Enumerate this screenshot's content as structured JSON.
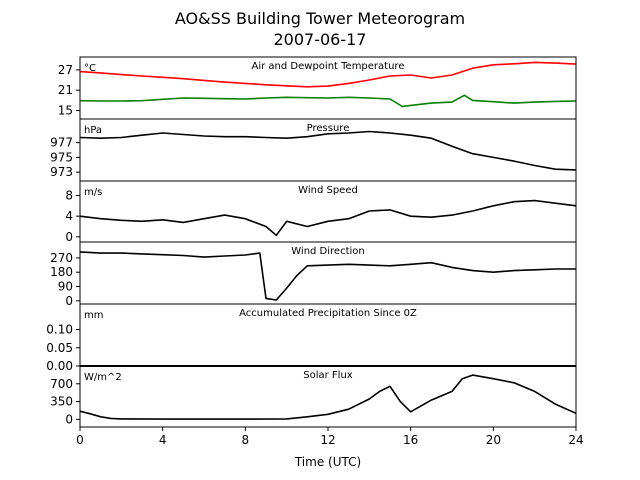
{
  "figure": {
    "title_line1": "AO&SS Building Tower Meteorogram",
    "title_line2": "2007-06-17",
    "xlabel": "Time (UTC)"
  },
  "chart_data": {
    "type": "line",
    "title": "AO&SS Building Tower Meteorogram 2007-06-17",
    "xlabel": "Time (UTC)",
    "xlim": [
      0,
      24
    ],
    "xticks": [
      0,
      4,
      8,
      12,
      16,
      20,
      24
    ],
    "grid": false,
    "panels": [
      {
        "id": "temperature",
        "title": "Air and Dewpoint Temperature",
        "unit": "°C",
        "ylim": [
          12.5,
          30.8
        ],
        "yticks": [
          15,
          21,
          27
        ],
        "series": [
          {
            "color": "#ff0000",
            "x": [
              0,
              1,
              2,
              3,
              4,
              5,
              6,
              7,
              8,
              9,
              10,
              11,
              12,
              13,
              14,
              15,
              16,
              17,
              18,
              19,
              20,
              21,
              22,
              23,
              24
            ],
            "y": [
              26.5,
              26.1,
              25.6,
              25.2,
              24.8,
              24.4,
              23.9,
              23.4,
              23.0,
              22.6,
              22.3,
              22.0,
              22.2,
              23.0,
              24.0,
              25.2,
              25.5,
              24.6,
              25.5,
              27.5,
              28.5,
              28.8,
              29.2,
              29.0,
              28.7
            ]
          },
          {
            "color": "#008000",
            "x": [
              0,
              1,
              2,
              3,
              4,
              5,
              6,
              7,
              8,
              9,
              10,
              11,
              12,
              13,
              14,
              15,
              15.6,
              16,
              17,
              18,
              18.6,
              19,
              20,
              21,
              22,
              23,
              24
            ],
            "y": [
              17.9,
              17.8,
              17.8,
              17.9,
              18.3,
              18.7,
              18.6,
              18.5,
              18.4,
              18.7,
              18.9,
              18.8,
              18.7,
              18.9,
              18.7,
              18.4,
              16.2,
              16.5,
              17.2,
              17.5,
              19.5,
              18.0,
              17.6,
              17.2,
              17.5,
              17.7,
              17.8
            ]
          }
        ]
      },
      {
        "id": "pressure",
        "title": "Pressure",
        "unit": "hPa",
        "ylim": [
          971.8,
          980.2
        ],
        "yticks": [
          973,
          975,
          977
        ],
        "series": [
          {
            "color": "#000000",
            "x": [
              0,
              1,
              2,
              3,
              4,
              5,
              6,
              7,
              8,
              9,
              10,
              11,
              12,
              13,
              14,
              15,
              16,
              17,
              18,
              19,
              20,
              21,
              22,
              23,
              24
            ],
            "y": [
              977.7,
              977.6,
              977.7,
              978.0,
              978.3,
              978.1,
              977.9,
              977.8,
              977.8,
              977.7,
              977.6,
              977.8,
              978.2,
              978.3,
              978.5,
              978.3,
              978.0,
              977.6,
              976.5,
              975.5,
              975.0,
              974.5,
              973.9,
              973.4,
              973.3
            ]
          }
        ]
      },
      {
        "id": "wind_speed",
        "title": "Wind Speed",
        "unit": "m/s",
        "ylim": [
          -1.0,
          10.8
        ],
        "yticks": [
          0,
          4,
          8
        ],
        "series": [
          {
            "color": "#000000",
            "x": [
              0,
              1,
              2,
              3,
              4,
              5,
              6,
              7,
              8,
              9,
              9.5,
              10,
              11,
              12,
              13,
              14,
              15,
              16,
              17,
              18,
              19,
              20,
              21,
              22,
              23,
              24
            ],
            "y": [
              4.0,
              3.5,
              3.2,
              3.0,
              3.3,
              2.8,
              3.5,
              4.2,
              3.5,
              2.0,
              0.3,
              3.0,
              2.0,
              3.0,
              3.5,
              5.0,
              5.2,
              4.0,
              3.8,
              4.2,
              5.0,
              6.0,
              6.8,
              7.0,
              6.5,
              6.0
            ]
          }
        ]
      },
      {
        "id": "wind_direction",
        "title": "Wind Direction",
        "unit": "",
        "ylim": [
          -20,
          370
        ],
        "yticks": [
          0,
          90,
          180,
          270
        ],
        "series": [
          {
            "color": "#000000",
            "x": [
              0,
              1,
              2,
              3,
              4,
              5,
              6,
              7,
              8,
              8.7,
              9,
              9.5,
              10,
              10.5,
              11,
              12,
              13,
              14,
              15,
              16,
              17,
              18,
              19,
              20,
              21,
              22,
              23,
              24
            ],
            "y": [
              308,
              300,
              300,
              295,
              290,
              285,
              275,
              282,
              288,
              300,
              15,
              5,
              80,
              160,
              220,
              225,
              230,
              225,
              220,
              230,
              240,
              210,
              190,
              180,
              190,
              195,
              200,
              200
            ]
          }
        ]
      },
      {
        "id": "precipitation",
        "title": "Accumulated Precipitation Since 0Z",
        "unit": "mm",
        "ylim": [
          0,
          0.17
        ],
        "yticks": [
          0.0,
          0.05,
          0.1
        ],
        "series": [
          {
            "color": "#000000",
            "x": [
              0,
              24
            ],
            "y": [
              0,
              0
            ]
          }
        ]
      },
      {
        "id": "solar_flux",
        "title": "Solar Flux",
        "unit": "W/m^2",
        "ylim": [
          -150,
          1050
        ],
        "yticks": [
          0,
          350,
          700
        ],
        "series": [
          {
            "color": "#000000",
            "x": [
              0,
              0.5,
              1,
              1.5,
              2,
              4,
              6,
              8,
              10,
              11,
              12,
              13,
              14,
              14.5,
              15,
              15.5,
              16,
              17,
              18,
              18.5,
              19,
              20,
              21,
              22,
              23,
              24
            ],
            "y": [
              160,
              110,
              50,
              20,
              10,
              5,
              5,
              5,
              10,
              50,
              100,
              200,
              400,
              550,
              650,
              350,
              150,
              380,
              550,
              800,
              870,
              800,
              720,
              550,
              300,
              120
            ]
          }
        ]
      }
    ]
  }
}
